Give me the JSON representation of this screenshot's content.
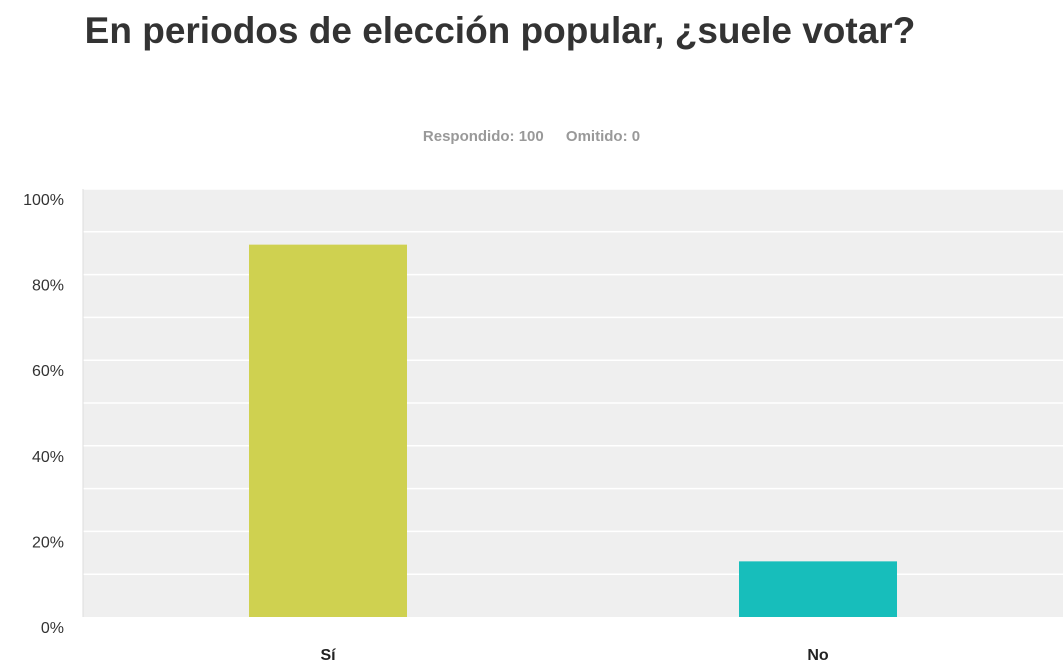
{
  "title": "En periodos de elección popular, ¿suele votar?",
  "stats": {
    "answered": "Respondido: 100",
    "skipped": "Omitido: 0"
  },
  "chart_data": {
    "type": "bar",
    "categories": [
      "Sí",
      "No"
    ],
    "values": [
      87,
      13
    ],
    "ylim": [
      0,
      100
    ],
    "yticks": [
      "0%",
      "20%",
      "40%",
      "60%",
      "80%",
      "100%"
    ],
    "bar_colors": [
      "#cfd150",
      "#17bebb"
    ],
    "plot_background": "#efefef",
    "grid": true
  }
}
